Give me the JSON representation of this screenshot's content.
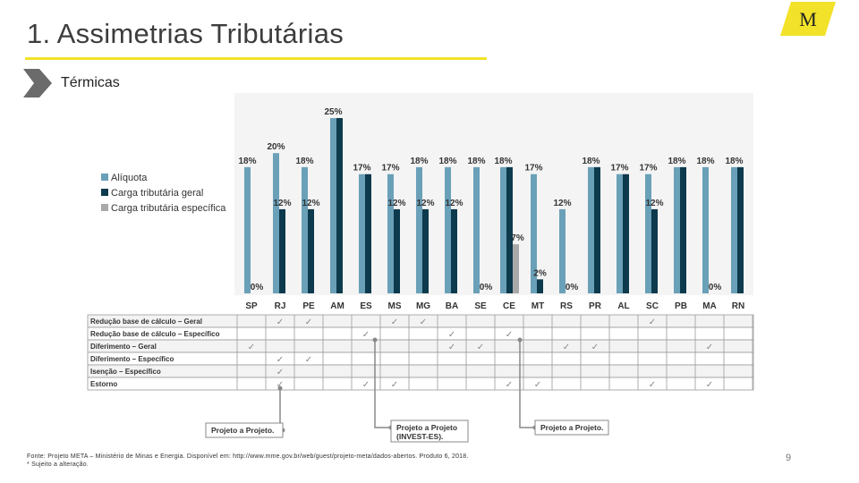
{
  "header": {
    "title": "1. Assimetrias Tributárias",
    "section": "Térmicas",
    "logo_text": "M"
  },
  "colors": {
    "accent": "#f2e22a",
    "aliquota": "#6aa0b8",
    "carga_geral": "#0d3a4c",
    "carga_especifica": "#a9a9a9",
    "check": "#888888"
  },
  "chart_data": {
    "type": "bar",
    "categories": [
      "SP",
      "RJ",
      "PE",
      "AM",
      "ES",
      "MS",
      "MG",
      "BA",
      "SE",
      "CE",
      "MT",
      "RS",
      "PR",
      "AL",
      "SC",
      "PB",
      "MA",
      "RN"
    ],
    "series": [
      {
        "name": "Alíquota",
        "values": [
          18,
          20,
          18,
          25,
          17,
          17,
          18,
          18,
          18,
          18,
          17,
          12,
          18,
          17,
          17,
          18,
          18,
          18
        ],
        "labels": [
          "18%",
          "20%",
          "18%",
          "25%",
          "17%",
          "17%",
          "18%",
          "18%",
          "18%",
          "18%",
          "17%",
          "12%",
          "18%",
          "17%",
          "17%",
          "18%",
          "18%",
          "18%"
        ]
      },
      {
        "name": "Carga tributária geral",
        "values": [
          0,
          12,
          12,
          25,
          17,
          12,
          12,
          12,
          0,
          18,
          2,
          0,
          18,
          17,
          12,
          18,
          0,
          18
        ],
        "labels": [
          "0%",
          "12%",
          "12%",
          "",
          "",
          "12%",
          "12%",
          "12%",
          "0%",
          "",
          "2%",
          "0%",
          "",
          "",
          "12%",
          "",
          "0%",
          ""
        ]
      },
      {
        "name": "Carga tributária específica",
        "values": [
          null,
          null,
          null,
          null,
          null,
          null,
          null,
          null,
          null,
          7,
          null,
          null,
          null,
          null,
          null,
          null,
          null,
          null
        ],
        "labels": [
          "",
          "",
          "",
          "",
          "",
          "",
          "",
          "",
          "",
          "7%",
          "",
          "",
          "",
          "",
          "",
          "",
          "",
          ""
        ]
      }
    ],
    "ylim": [
      0,
      25
    ],
    "legend_position": "left",
    "table": {
      "rows": [
        {
          "label": "Redução base de cálculo – Geral",
          "checks": [
            "RJ",
            "PE",
            "MS",
            "MG",
            "SC"
          ]
        },
        {
          "label": "Redução base de cálculo – Específico",
          "checks": [
            "ES",
            "BA",
            "CE"
          ]
        },
        {
          "label": "Diferimento – Geral",
          "checks": [
            "SP",
            "BA",
            "SE",
            "RS",
            "PR",
            "MA"
          ]
        },
        {
          "label": "Diferimento – Específico",
          "checks": [
            "RJ",
            "PE"
          ]
        },
        {
          "label": "Isenção – Específico",
          "checks": [
            "RJ"
          ]
        },
        {
          "label": "Estorno",
          "checks": [
            "RJ",
            "ES",
            "MS",
            "CE",
            "MT",
            "SC",
            "MA"
          ]
        }
      ]
    },
    "annotations": [
      {
        "text": "Projeto a Projeto.",
        "anchor": "RJ"
      },
      {
        "text": "Projeto a Projeto (INVEST-ES).",
        "lines": [
          "Projeto a Projeto",
          "(INVEST-ES)."
        ],
        "anchor": "ES"
      },
      {
        "text": "Projeto a Projeto.",
        "anchor": "CE"
      }
    ]
  },
  "footer": {
    "source": "Fonte: Projeto META – Ministério de Minas e Energia. Disponível em: http://www.mme.gov.br/web/guest/projeto-meta/dados-abertos. Produto 6, 2018.",
    "note": "* Sujeito a alteração.",
    "page_number": "9"
  }
}
